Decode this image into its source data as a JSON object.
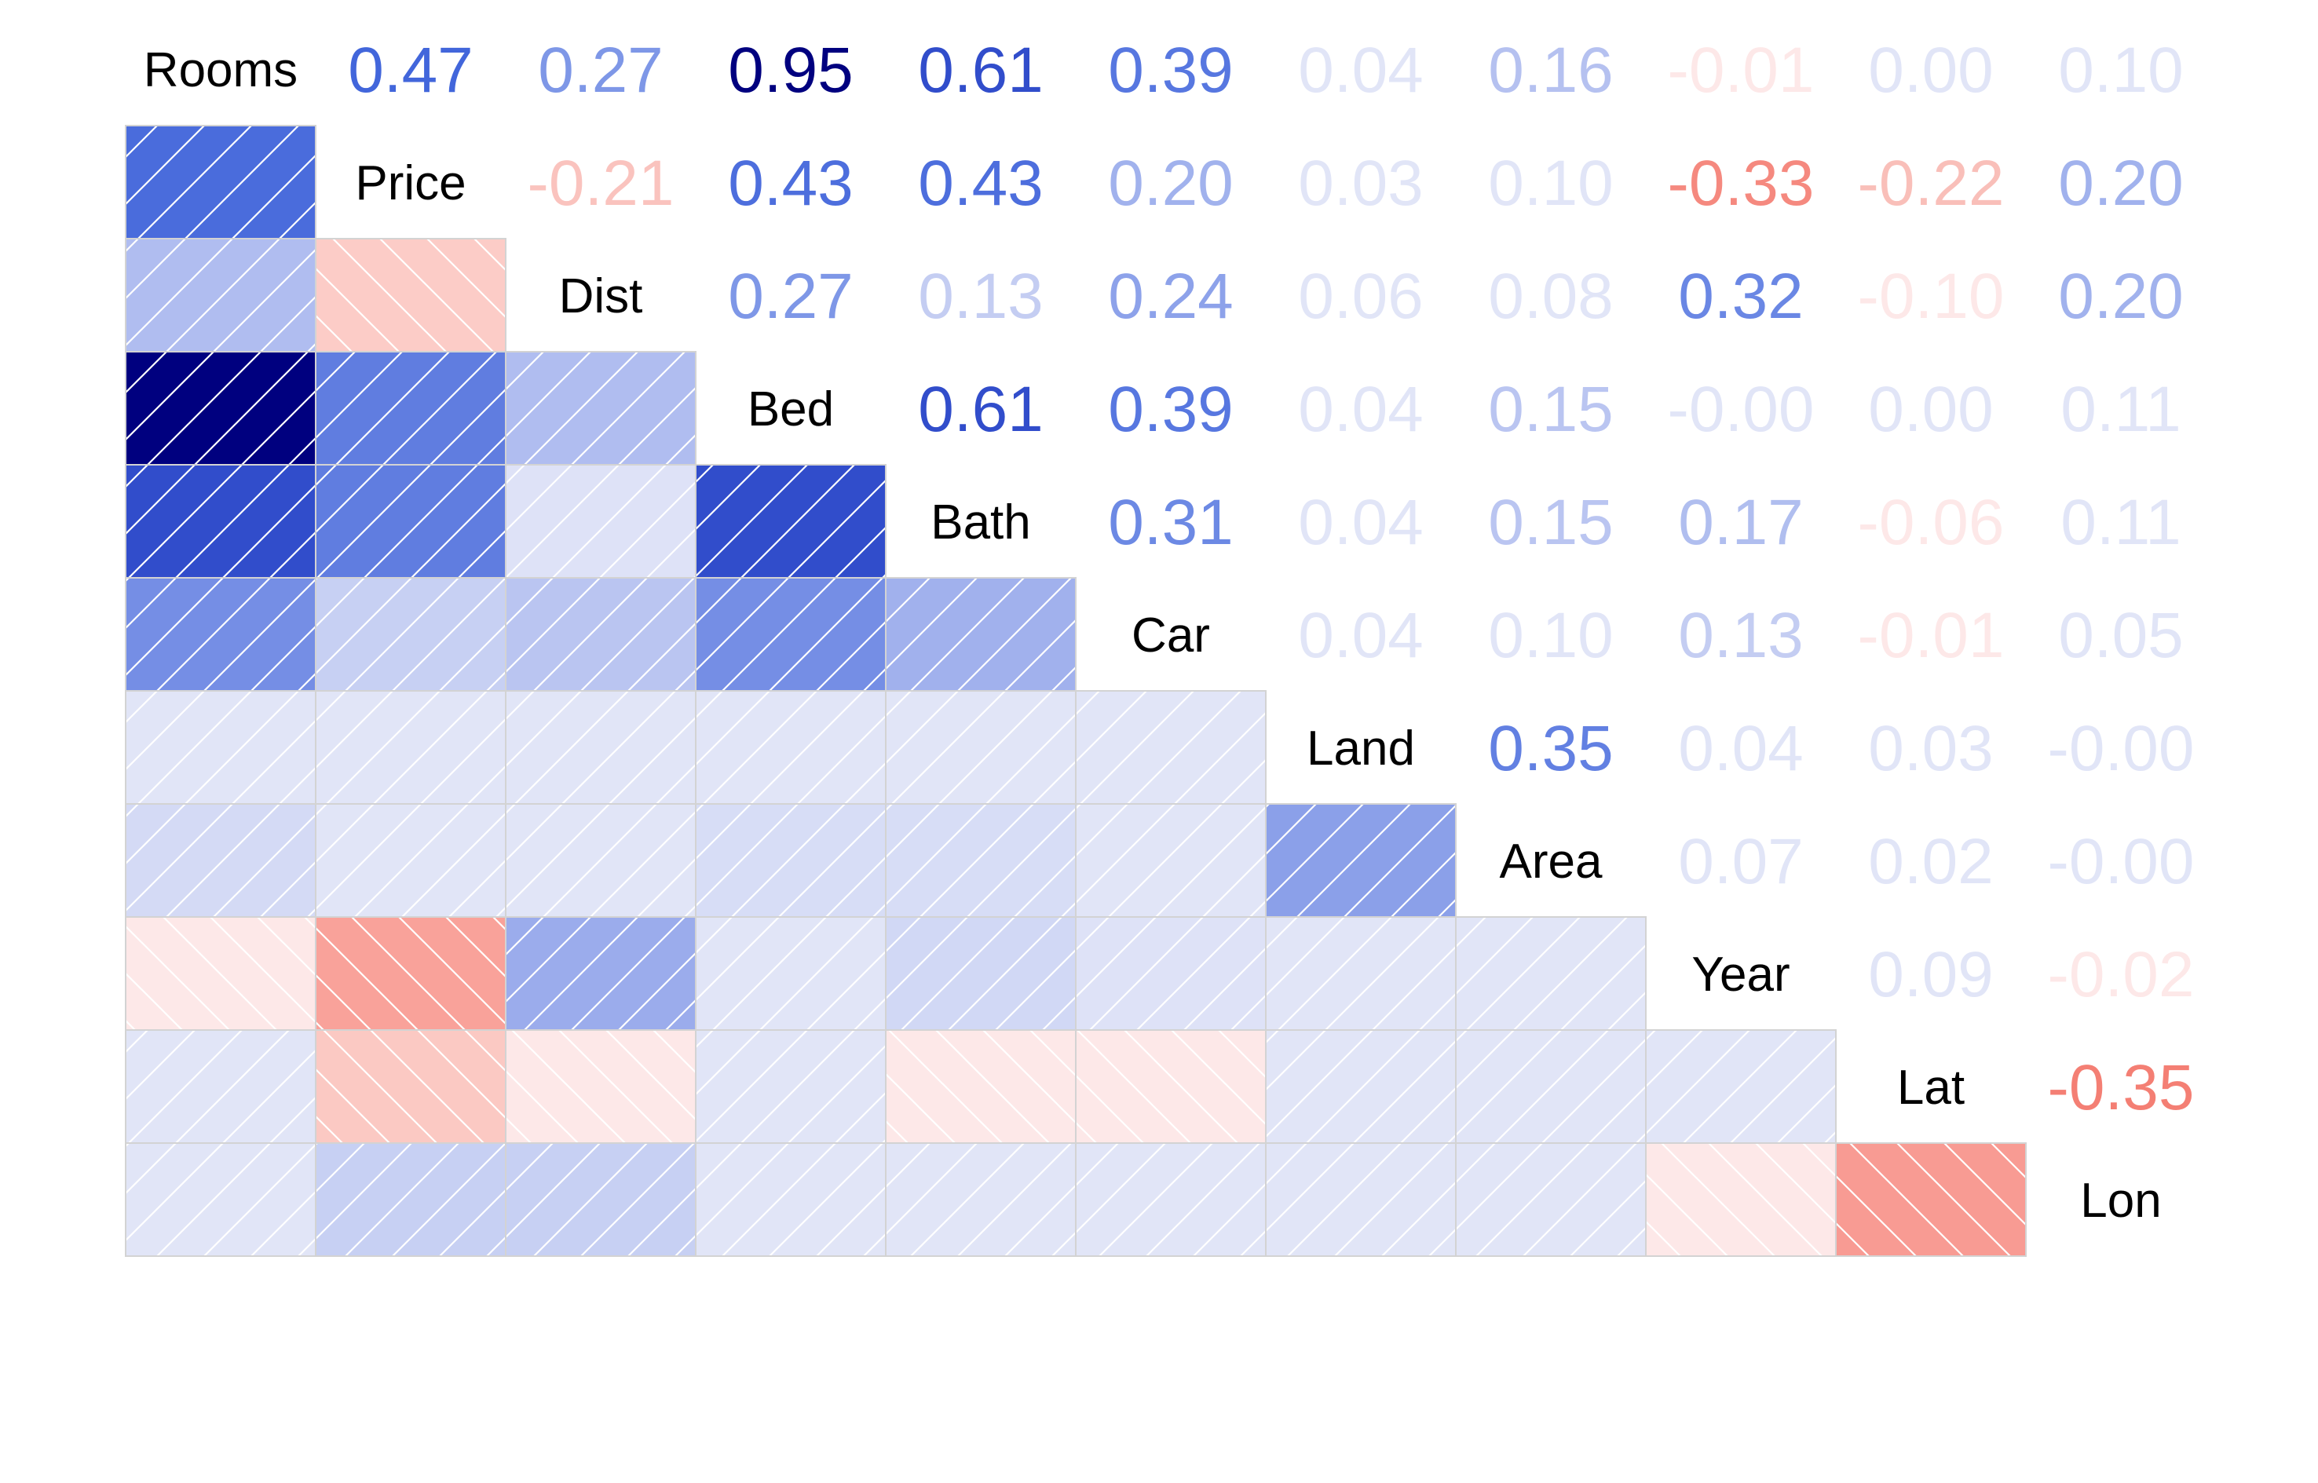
{
  "chart_data": {
    "type": "heatmap",
    "variables": [
      "Rooms",
      "Price",
      "Dist",
      "Bed",
      "Bath",
      "Car",
      "Land",
      "Area",
      "Year",
      "Lat",
      "Lon"
    ],
    "matrix": [
      [
        1,
        0.47,
        0.27,
        0.95,
        0.61,
        0.39,
        0.04,
        0.16,
        -0.01,
        0.0,
        0.1
      ],
      [
        0.47,
        1,
        -0.21,
        0.43,
        0.43,
        0.2,
        0.03,
        0.1,
        -0.33,
        -0.22,
        0.2
      ],
      [
        0.27,
        -0.21,
        1,
        0.27,
        0.13,
        0.24,
        0.06,
        0.08,
        0.32,
        -0.1,
        0.2
      ],
      [
        0.95,
        0.43,
        0.27,
        1,
        0.61,
        0.39,
        0.04,
        0.15,
        -0.0,
        0.0,
        0.11
      ],
      [
        0.61,
        0.43,
        0.13,
        0.61,
        1,
        0.31,
        0.04,
        0.15,
        0.17,
        -0.06,
        0.11
      ],
      [
        0.39,
        0.2,
        0.24,
        0.39,
        0.31,
        1,
        0.04,
        0.1,
        0.13,
        -0.01,
        0.05
      ],
      [
        0.04,
        0.03,
        0.06,
        0.04,
        0.04,
        0.04,
        1,
        0.35,
        0.04,
        0.03,
        -0.0
      ],
      [
        0.16,
        0.1,
        0.08,
        0.15,
        0.15,
        0.1,
        0.35,
        1,
        0.07,
        0.02,
        -0.0
      ],
      [
        -0.01,
        -0.33,
        0.32,
        -0.0,
        0.17,
        0.13,
        0.04,
        0.07,
        1,
        0.09,
        -0.02
      ],
      [
        0.0,
        -0.22,
        -0.1,
        0.0,
        -0.06,
        -0.01,
        0.03,
        0.02,
        0.09,
        1,
        -0.35
      ],
      [
        0.1,
        0.2,
        0.2,
        0.11,
        0.11,
        0.05,
        -0.0,
        -0.0,
        -0.02,
        -0.35,
        1
      ]
    ],
    "upper_labels": [
      [
        "0.47",
        "0.27",
        "0.95",
        "0.61",
        "0.39",
        "0.04",
        "0.16",
        "-0.01",
        "0.00",
        "0.10"
      ],
      [
        "-0.21",
        "0.43",
        "0.43",
        "0.20",
        "0.03",
        "0.10",
        "-0.33",
        "-0.22",
        "0.20"
      ],
      [
        "0.27",
        "0.13",
        "0.24",
        "0.06",
        "0.08",
        "0.32",
        "-0.10",
        "0.20"
      ],
      [
        "0.61",
        "0.39",
        "0.04",
        "0.15",
        "-0.00",
        "0.00",
        "0.11"
      ],
      [
        "0.31",
        "0.04",
        "0.15",
        "0.17",
        "-0.06",
        "0.11"
      ],
      [
        "0.04",
        "0.10",
        "0.13",
        "-0.01",
        "0.05"
      ],
      [
        "0.35",
        "0.04",
        "0.03",
        "-0.00"
      ],
      [
        "0.07",
        "0.02",
        "-0.00"
      ],
      [
        "0.09",
        "-0.02"
      ],
      [
        "-0.35"
      ]
    ],
    "lower": "shade",
    "upper": "number",
    "diagonal": "variable names",
    "colors": {
      "positive_strong": "#00007f",
      "positive_mid": "#3a5fd9",
      "near_zero_positive": "#e1e5f7",
      "near_zero_negative": "#fde8e8",
      "negative_mid": "#f89b93",
      "cell_border": "#d3d3d3",
      "hatch": "#ffffff"
    }
  }
}
